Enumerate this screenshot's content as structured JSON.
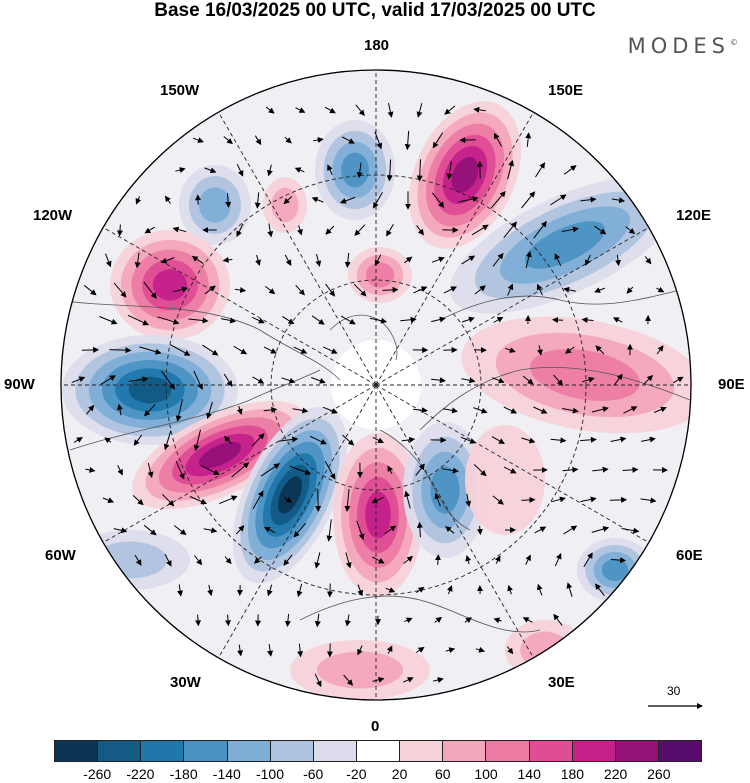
{
  "header": {
    "title": "Base 16/03/2025 00 UTC, valid 17/03/2025 00 UTC",
    "brand": "MODES",
    "brand_mark": "©"
  },
  "map": {
    "projection": "north-polar-stereographic",
    "longitude_labels": {
      "lon_180": "180",
      "lon_150w": "150W",
      "lon_150e": "150E",
      "lon_120w": "120W",
      "lon_120e": "120E",
      "lon_90w": "90W",
      "lon_90e": "90E",
      "lon_60w": "60W",
      "lon_60e": "60E",
      "lon_30w": "30W",
      "lon_30e": "30E",
      "lon_0": "0"
    },
    "grid": true,
    "wind_vectors": true,
    "reference_vector": "30"
  },
  "colorbar": {
    "labels": [
      "-260",
      "-220",
      "-180",
      "-140",
      "-100",
      "-60",
      "-20",
      "20",
      "60",
      "100",
      "140",
      "180",
      "220",
      "260"
    ],
    "colors": [
      "#0b3552",
      "#135a85",
      "#1f77ac",
      "#4b93c4",
      "#7eaed6",
      "#aec3df",
      "#dcdcec",
      "#ffffff",
      "#f7d2d9",
      "#f3a7bb",
      "#ec7ba4",
      "#df4d95",
      "#c4208a",
      "#931279",
      "#580d6c"
    ]
  }
}
